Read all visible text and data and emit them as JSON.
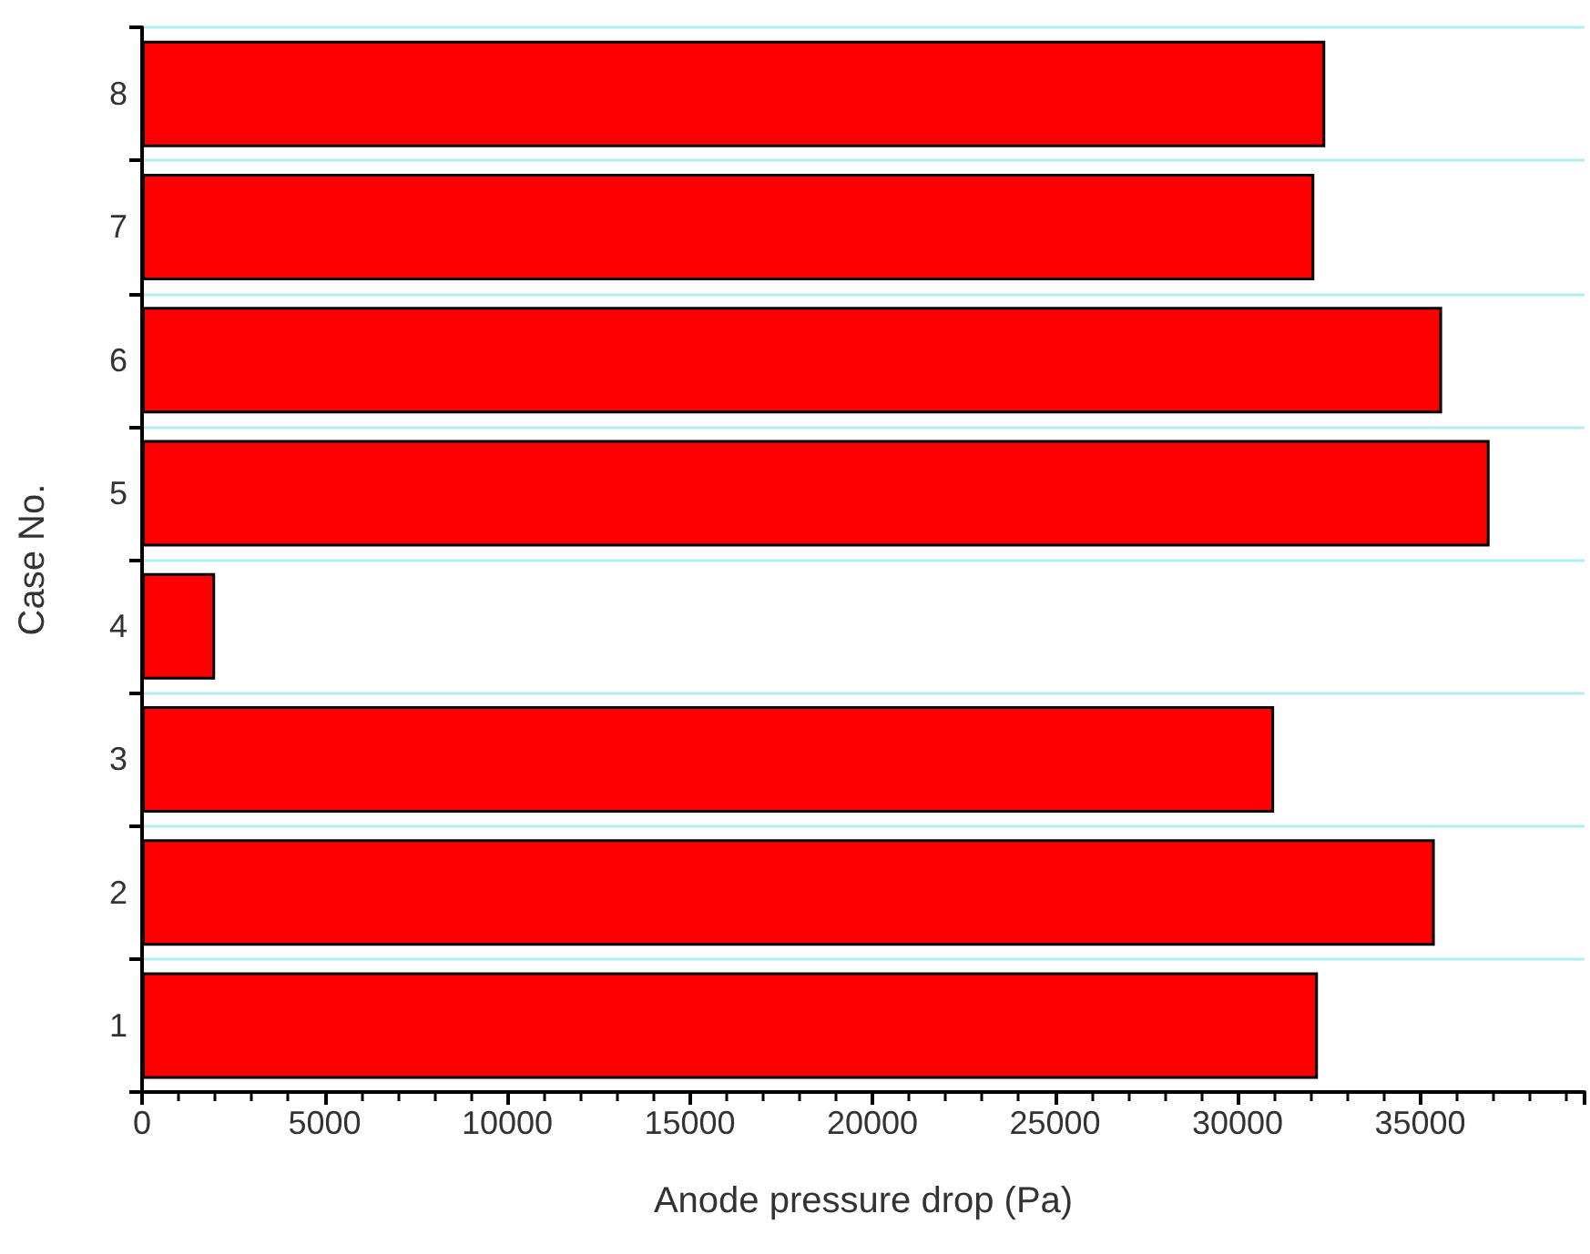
{
  "chart_data": {
    "type": "bar",
    "orientation": "horizontal",
    "xlabel": "Anode pressure drop (Pa)",
    "ylabel": "Case No.",
    "categories": [
      "8",
      "7",
      "6",
      "5",
      "4",
      "3",
      "2",
      "1"
    ],
    "values": [
      32400,
      32100,
      35600,
      36900,
      2000,
      31000,
      35400,
      32200
    ],
    "color": "#ff0000",
    "xlim": [
      0,
      39500
    ],
    "xticks": [
      0,
      5000,
      10000,
      15000,
      20000,
      25000,
      30000,
      35000
    ],
    "grid": "y"
  }
}
